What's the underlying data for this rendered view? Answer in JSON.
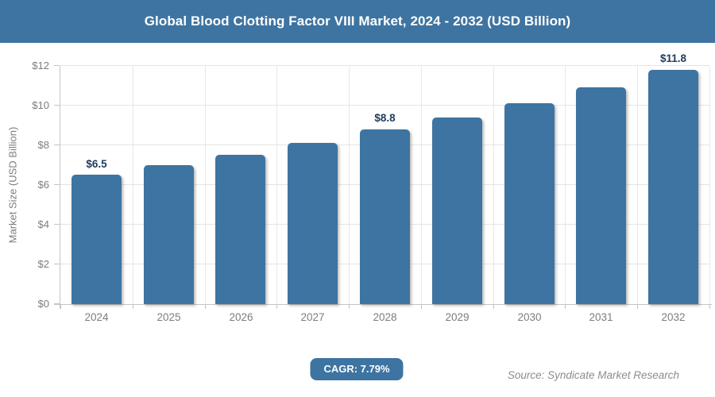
{
  "header": {
    "title": "Global Blood Clotting Factor VIII Market, 2024 - 2032 (USD Billion)"
  },
  "chart_data": {
    "type": "bar",
    "title": "Global Blood Clotting Factor VIII Market, 2024 - 2032 (USD Billion)",
    "categories": [
      "2024",
      "2025",
      "2026",
      "2027",
      "2028",
      "2029",
      "2030",
      "2031",
      "2032"
    ],
    "values": [
      6.5,
      7.0,
      7.5,
      8.1,
      8.8,
      9.4,
      10.1,
      10.9,
      11.8
    ],
    "bar_value_labels": [
      "$6.5",
      "",
      "",
      "",
      "$8.8",
      "",
      "",
      "",
      "$11.8"
    ],
    "xlabel": "",
    "ylabel": "Market Size (USD Billion)",
    "ylim": [
      0,
      12
    ],
    "ytick_step": 2,
    "ytick_labels": [
      "$0",
      "$2",
      "$4",
      "$6",
      "$8",
      "$10",
      "$12"
    ],
    "grid": true,
    "legend": "none",
    "bar_color": "#3d74a1",
    "value_label_color": "#1e3a5f"
  },
  "footer": {
    "cagr_label": "CAGR: 7.79%",
    "source": "Source: Syndicate Market Research"
  },
  "colors": {
    "header_bg": "#3e74a1",
    "header_text": "#ffffff",
    "axis_text": "#7d7d7d",
    "gridline": "#e4e4e4",
    "axis_line": "#c4c4c4",
    "badge_bg": "#3d74a1",
    "badge_text": "#ffffff",
    "source_text": "#8c8c8c"
  }
}
